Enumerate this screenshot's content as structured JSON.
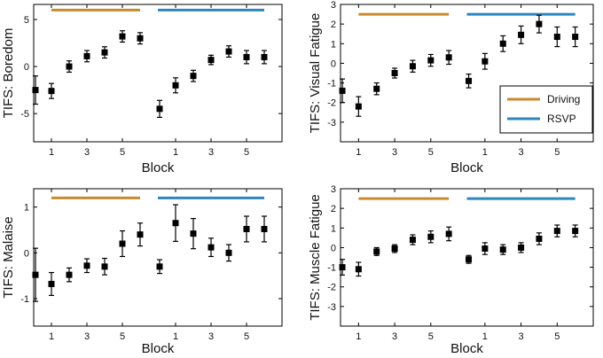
{
  "colors": {
    "driving": "#C88A2E",
    "rsvp": "#2E86C1",
    "marker": "#000000",
    "axis": "#000000"
  },
  "legend": {
    "driving_label": "Driving",
    "rsvp_label": "RSVP"
  },
  "chart_data": [
    {
      "type": "scatter",
      "title": "",
      "ylabel": "TIFS: Boredom",
      "xlabel": "Block",
      "ylim": [
        -8,
        6.6
      ],
      "yticks": [
        -5,
        0,
        5
      ],
      "ytick_labels": [
        "-5",
        "0",
        "5"
      ],
      "xlim": [
        -1,
        13
      ],
      "xticks": [
        0,
        2,
        4,
        7,
        9,
        11
      ],
      "xtick_labels": [
        "1",
        "3",
        "5",
        "1",
        "3",
        "5"
      ],
      "bars": [
        {
          "name": "Driving",
          "x_start": 0,
          "x_end": 5,
          "y": 6.0
        },
        {
          "name": "RSVP",
          "x_start": 6,
          "x_end": 12,
          "y": 6.0
        }
      ],
      "series": [
        {
          "name": "Driving",
          "x": [
            -0.9,
            0,
            1,
            2,
            3,
            4,
            5
          ],
          "y": [
            -2.5,
            -2.6,
            0.0,
            1.1,
            1.5,
            3.2,
            3.0
          ],
          "err": [
            1.5,
            0.8,
            0.6,
            0.6,
            0.6,
            0.6,
            0.6
          ]
        },
        {
          "name": "RSVP",
          "x": [
            6.1,
            7,
            8,
            9,
            10,
            11,
            12
          ],
          "y": [
            -4.5,
            -2.0,
            -1.0,
            0.7,
            1.6,
            1.0,
            1.0
          ],
          "err": [
            0.9,
            0.8,
            0.6,
            0.5,
            0.6,
            0.7,
            0.7
          ]
        }
      ]
    },
    {
      "type": "scatter",
      "title": "",
      "ylabel": "TIFS: Visual Fatigue",
      "xlabel": "Block",
      "ylim": [
        -4,
        3
      ],
      "yticks": [
        -3,
        -2,
        -1,
        0,
        1,
        2,
        3
      ],
      "ytick_labels": [
        "-3",
        "-2",
        "-1",
        "0",
        "1",
        "2",
        "3"
      ],
      "xlim": [
        -1,
        13
      ],
      "xticks": [
        0,
        2,
        4,
        7,
        9,
        11
      ],
      "xtick_labels": [
        "1",
        "3",
        "5",
        "1",
        "3",
        "5"
      ],
      "bars": [
        {
          "name": "Driving",
          "x_start": 0,
          "x_end": 5,
          "y": 2.5
        },
        {
          "name": "RSVP",
          "x_start": 6,
          "x_end": 12,
          "y": 2.5
        }
      ],
      "series": [
        {
          "name": "Driving",
          "x": [
            -0.9,
            0,
            1,
            2,
            3,
            4,
            5
          ],
          "y": [
            -1.4,
            -2.2,
            -1.3,
            -0.5,
            -0.15,
            0.15,
            0.3
          ],
          "err": [
            0.6,
            0.5,
            0.3,
            0.25,
            0.3,
            0.3,
            0.35
          ]
        },
        {
          "name": "RSVP",
          "x": [
            6.1,
            7,
            8,
            9,
            10,
            11,
            12
          ],
          "y": [
            -0.9,
            0.1,
            1.0,
            1.45,
            2.0,
            1.35,
            1.35
          ],
          "err": [
            0.35,
            0.4,
            0.4,
            0.45,
            0.45,
            0.5,
            0.5
          ]
        }
      ]
    },
    {
      "type": "scatter",
      "title": "",
      "ylabel": "TIFS: Malaise",
      "xlabel": "Block",
      "ylim": [
        -1.6,
        1.4
      ],
      "yticks": [
        -1,
        0,
        1
      ],
      "ytick_labels": [
        "-1",
        "0",
        "1"
      ],
      "xlim": [
        -1,
        13
      ],
      "xticks": [
        0,
        2,
        4,
        7,
        9,
        11
      ],
      "xtick_labels": [
        "1",
        "3",
        "5",
        "1",
        "3",
        "5"
      ],
      "bars": [
        {
          "name": "Driving",
          "x_start": 0,
          "x_end": 5,
          "y": 1.2
        },
        {
          "name": "RSVP",
          "x_start": 6,
          "x_end": 12,
          "y": 1.2
        }
      ],
      "series": [
        {
          "name": "Driving",
          "x": [
            -0.9,
            0,
            1,
            2,
            3,
            4,
            5
          ],
          "y": [
            -0.48,
            -0.68,
            -0.48,
            -0.28,
            -0.3,
            0.2,
            0.4
          ],
          "err": [
            0.58,
            0.25,
            0.15,
            0.15,
            0.18,
            0.28,
            0.25
          ]
        },
        {
          "name": "RSVP",
          "x": [
            6.1,
            7,
            8,
            9,
            10,
            11,
            12
          ],
          "y": [
            -0.3,
            0.65,
            0.42,
            0.12,
            0.0,
            0.52,
            0.52
          ],
          "err": [
            0.15,
            0.4,
            0.33,
            0.2,
            0.18,
            0.28,
            0.28
          ]
        }
      ]
    },
    {
      "type": "scatter",
      "title": "",
      "ylabel": "TIFS: Muscle Fatigue",
      "xlabel": "Block",
      "ylim": [
        -4,
        3
      ],
      "yticks": [
        -3,
        -2,
        -1,
        0,
        1,
        2,
        3
      ],
      "ytick_labels": [
        "-3",
        "-2",
        "-1",
        "0",
        "1",
        "2",
        "3"
      ],
      "xlim": [
        -1,
        13
      ],
      "xticks": [
        0,
        2,
        4,
        7,
        9,
        11
      ],
      "xtick_labels": [
        "1",
        "3",
        "5",
        "1",
        "3",
        "5"
      ],
      "bars": [
        {
          "name": "Driving",
          "x_start": 0,
          "x_end": 5,
          "y": 2.5
        },
        {
          "name": "RSVP",
          "x_start": 6,
          "x_end": 12,
          "y": 2.5
        }
      ],
      "series": [
        {
          "name": "Driving",
          "x": [
            -0.9,
            0,
            1,
            2,
            3,
            4,
            5
          ],
          "y": [
            -1.0,
            -1.1,
            -0.2,
            -0.05,
            0.4,
            0.55,
            0.7
          ],
          "err": [
            0.4,
            0.35,
            0.2,
            0.2,
            0.25,
            0.3,
            0.35
          ]
        },
        {
          "name": "RSVP",
          "x": [
            6.1,
            7,
            8,
            9,
            10,
            11,
            12
          ],
          "y": [
            -0.6,
            -0.05,
            -0.1,
            0.0,
            0.45,
            0.85,
            0.85
          ],
          "err": [
            0.2,
            0.3,
            0.25,
            0.25,
            0.3,
            0.3,
            0.3
          ]
        }
      ]
    }
  ]
}
